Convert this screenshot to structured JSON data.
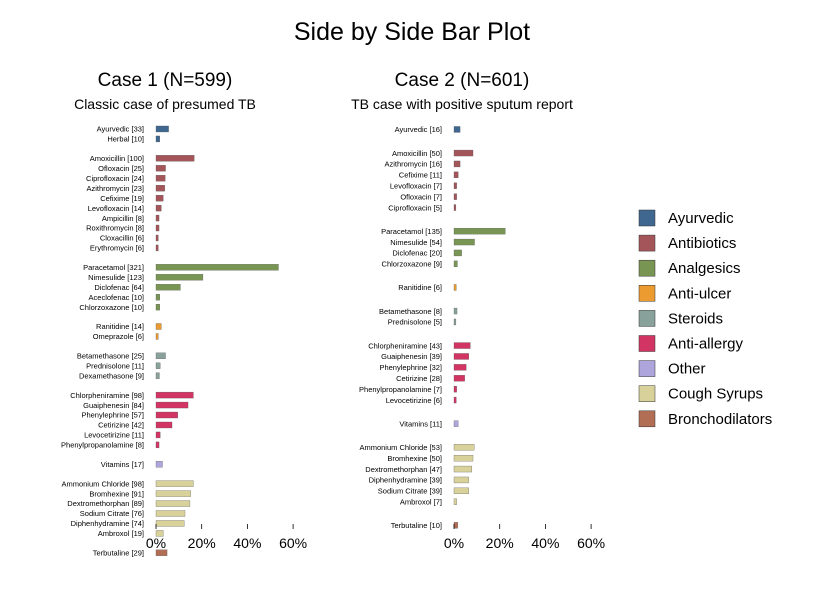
{
  "title": "Side by Side Bar Plot",
  "colors": {
    "Ayurvedic": "#3f6790",
    "Antibiotics": "#a45559",
    "Analgesics": "#799553",
    "Anti-ulcer": "#ec9b30",
    "Steroids": "#89a19b",
    "Anti-allergy": "#d23463",
    "Other": "#ada5dc",
    "Cough Syrups": "#d8d19a",
    "Bronchodilators": "#b26e55"
  },
  "legend": [
    "Ayurvedic",
    "Antibiotics",
    "Analgesics",
    "Anti-ulcer",
    "Steroids",
    "Anti-allergy",
    "Other",
    "Cough Syrups",
    "Bronchodilators"
  ],
  "chart_data": [
    {
      "type": "bar",
      "orientation": "horizontal",
      "title": "Case 1 (N=599)",
      "subtitle": "Classic case of presumed TB",
      "n": 599,
      "xlim": [
        0,
        60
      ],
      "xticks": [
        "0%",
        "20%",
        "40%",
        "60%"
      ],
      "groups": [
        {
          "category": "Ayurvedic",
          "items": [
            {
              "label": "Ayurvedic [33]",
              "count": 33
            },
            {
              "label": "Herbal [10]",
              "count": 10
            }
          ]
        },
        {
          "category": "Antibiotics",
          "items": [
            {
              "label": "Amoxicillin [100]",
              "count": 100
            },
            {
              "label": "Ofloxacin [25]",
              "count": 25
            },
            {
              "label": "Ciprofloxacin [24]",
              "count": 24
            },
            {
              "label": "Azithromycin [23]",
              "count": 23
            },
            {
              "label": "Cefixime [19]",
              "count": 19
            },
            {
              "label": "Levofloxacin [14]",
              "count": 14
            },
            {
              "label": "Ampicillin [8]",
              "count": 8
            },
            {
              "label": "Roxithromycin [8]",
              "count": 8
            },
            {
              "label": "Cloxacillin [6]",
              "count": 6
            },
            {
              "label": "Erythromycin [6]",
              "count": 6
            }
          ]
        },
        {
          "category": "Analgesics",
          "items": [
            {
              "label": "Paracetamol [321]",
              "count": 321
            },
            {
              "label": "Nimesulide [123]",
              "count": 123
            },
            {
              "label": "Diclofenac [64]",
              "count": 64
            },
            {
              "label": "Aceclofenac [10]",
              "count": 10
            },
            {
              "label": "Chlorzoxazone [10]",
              "count": 10
            }
          ]
        },
        {
          "category": "Anti-ulcer",
          "items": [
            {
              "label": "Ranitidine [14]",
              "count": 14
            },
            {
              "label": "Omeprazole [6]",
              "count": 6
            }
          ]
        },
        {
          "category": "Steroids",
          "items": [
            {
              "label": "Betamethasone [25]",
              "count": 25
            },
            {
              "label": "Prednisolone [11]",
              "count": 11
            },
            {
              "label": "Dexamethasone [9]",
              "count": 9
            }
          ]
        },
        {
          "category": "Anti-allergy",
          "items": [
            {
              "label": "Chlorpheniramine [98]",
              "count": 98
            },
            {
              "label": "Guaiphenesin [84]",
              "count": 84
            },
            {
              "label": "Phenylephrine [57]",
              "count": 57
            },
            {
              "label": "Cetirizine [42]",
              "count": 42
            },
            {
              "label": "Levocetirizine [11]",
              "count": 11
            },
            {
              "label": "Phenylpropanolamine [8]",
              "count": 8
            }
          ]
        },
        {
          "category": "Other",
          "items": [
            {
              "label": "Vitamins [17]",
              "count": 17
            }
          ]
        },
        {
          "category": "Cough Syrups",
          "items": [
            {
              "label": "Ammonium Chloride [98]",
              "count": 98
            },
            {
              "label": "Bromhexine [91]",
              "count": 91
            },
            {
              "label": "Dextromethorphan [89]",
              "count": 89
            },
            {
              "label": "Sodium Citrate [76]",
              "count": 76
            },
            {
              "label": "Diphenhydramine [74]",
              "count": 74
            },
            {
              "label": "Ambroxol [19]",
              "count": 19
            }
          ]
        },
        {
          "category": "Bronchodilators",
          "items": [
            {
              "label": "Terbutaline [29]",
              "count": 29
            }
          ]
        }
      ]
    },
    {
      "type": "bar",
      "orientation": "horizontal",
      "title": "Case 2 (N=601)",
      "subtitle": "TB case with positive sputum report",
      "n": 601,
      "xlim": [
        0,
        60
      ],
      "xticks": [
        "0%",
        "20%",
        "40%",
        "60%"
      ],
      "groups": [
        {
          "category": "Ayurvedic",
          "items": [
            {
              "label": "Ayurvedic [16]",
              "count": 16
            }
          ]
        },
        {
          "category": "Antibiotics",
          "items": [
            {
              "label": "Amoxicillin [50]",
              "count": 50
            },
            {
              "label": "Azithromycin [16]",
              "count": 16
            },
            {
              "label": "Cefixime [11]",
              "count": 11
            },
            {
              "label": "Levofloxacin [7]",
              "count": 7
            },
            {
              "label": "Ofloxacin [7]",
              "count": 7
            },
            {
              "label": "Ciprofloxacin [5]",
              "count": 5
            }
          ]
        },
        {
          "category": "Analgesics",
          "items": [
            {
              "label": "Paracetamol [135]",
              "count": 135
            },
            {
              "label": "Nimesulide [54]",
              "count": 54
            },
            {
              "label": "Diclofenac [20]",
              "count": 20
            },
            {
              "label": "Chlorzoxazone [9]",
              "count": 9
            }
          ]
        },
        {
          "category": "Anti-ulcer",
          "items": [
            {
              "label": "Ranitidine [6]",
              "count": 6
            }
          ]
        },
        {
          "category": "Steroids",
          "items": [
            {
              "label": "Betamethasone [8]",
              "count": 8
            },
            {
              "label": "Prednisolone [5]",
              "count": 5
            }
          ]
        },
        {
          "category": "Anti-allergy",
          "items": [
            {
              "label": "Chlorpheniramine [43]",
              "count": 43
            },
            {
              "label": "Guaiphenesin [39]",
              "count": 39
            },
            {
              "label": "Phenylephrine [32]",
              "count": 32
            },
            {
              "label": "Cetirizine [28]",
              "count": 28
            },
            {
              "label": "Phenylpropanolamine [7]",
              "count": 7
            },
            {
              "label": "Levocetirizine [6]",
              "count": 6
            }
          ]
        },
        {
          "category": "Other",
          "items": [
            {
              "label": "Vitamins [11]",
              "count": 11
            }
          ]
        },
        {
          "category": "Cough Syrups",
          "items": [
            {
              "label": "Ammonium Chloride [53]",
              "count": 53
            },
            {
              "label": "Bromhexine [50]",
              "count": 50
            },
            {
              "label": "Dextromethorphan [47]",
              "count": 47
            },
            {
              "label": "Diphenhydramine [39]",
              "count": 39
            },
            {
              "label": "Sodium Citrate [39]",
              "count": 39
            },
            {
              "label": "Ambroxol [7]",
              "count": 7
            }
          ]
        },
        {
          "category": "Bronchodilators",
          "items": [
            {
              "label": "Terbutaline [10]",
              "count": 10
            }
          ]
        }
      ]
    }
  ]
}
